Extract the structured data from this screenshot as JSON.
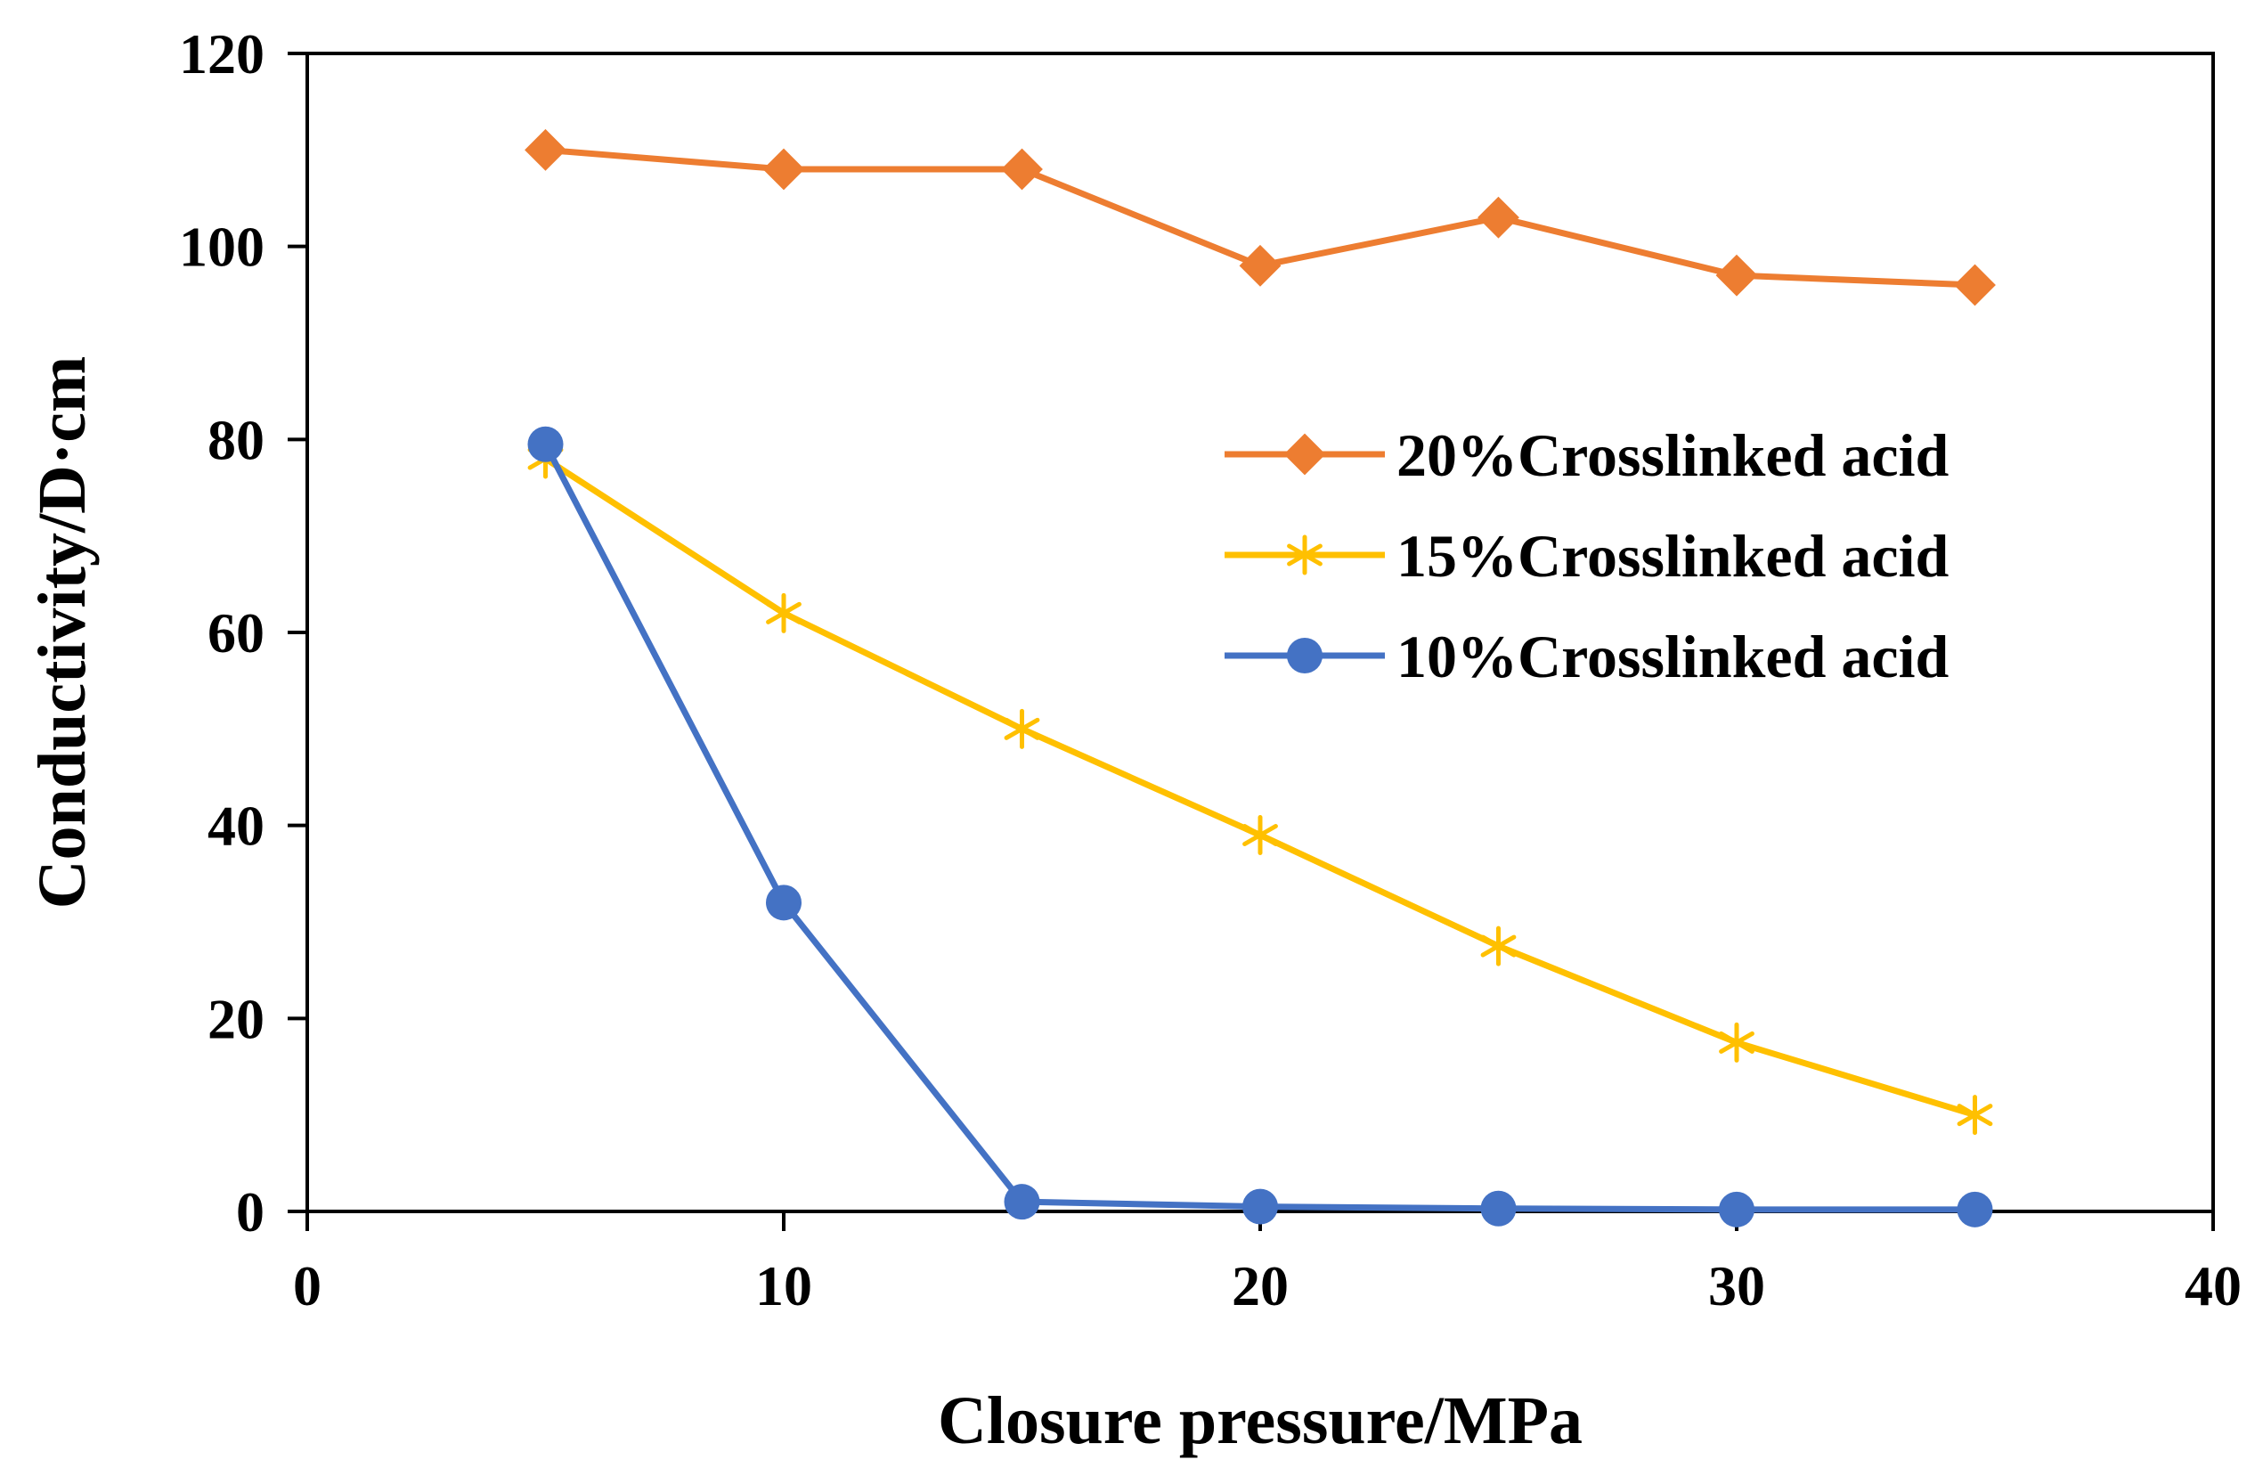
{
  "chart_data": {
    "type": "line",
    "title": "",
    "xlabel": "Closure pressure/MPa",
    "ylabel": "Conductivity/D·cm",
    "xlim": [
      0,
      40
    ],
    "ylim": [
      0,
      120
    ],
    "xticks": [
      0,
      10,
      20,
      30,
      40
    ],
    "yticks": [
      0,
      20,
      40,
      60,
      80,
      100,
      120
    ],
    "grid": false,
    "legend_position": "center-right",
    "x": [
      5,
      10,
      15,
      20,
      25,
      30,
      35
    ],
    "series": [
      {
        "name": "20%Crosslinked acid",
        "color": "#ED7D31",
        "marker": "diamond",
        "values": [
          110,
          108,
          108,
          98,
          103,
          97,
          96
        ]
      },
      {
        "name": "15%Crosslinked acid",
        "color": "#FFC000",
        "marker": "asterisk",
        "values": [
          78,
          62,
          50,
          39,
          27.5,
          17.5,
          10
        ]
      },
      {
        "name": "10%Crosslinked acid",
        "color": "#4472C4",
        "marker": "circle",
        "values": [
          79.5,
          32,
          1,
          0.5,
          0.3,
          0.2,
          0.2
        ]
      }
    ]
  }
}
